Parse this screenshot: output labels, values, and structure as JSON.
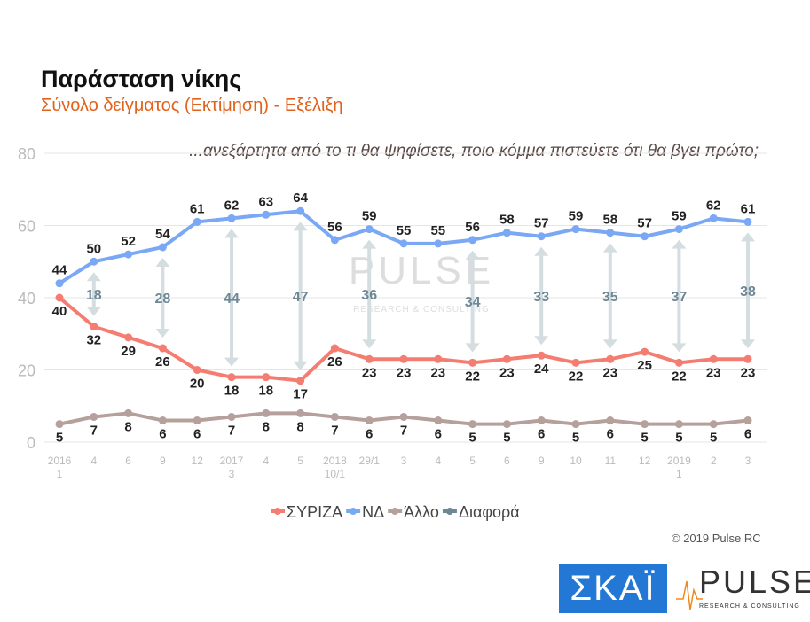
{
  "header": {
    "title": "Παράσταση νίκης",
    "subtitle": "Σύνολο δείγματος   (Εκτίμηση) - Εξέλιξη",
    "question": "...ανεξάρτητα από το τι θα ψηφίσετε, ποιο κόμμα πιστεύετε ότι θα βγει πρώτο;"
  },
  "footer": {
    "copyright": "© 2019 Pulse RC",
    "logo_skai": "ΣΚΑΪ",
    "logo_pulse": "PULSE",
    "logo_pulse_sub": "RESEARCH & CONSULTING"
  },
  "chart_data": {
    "type": "line",
    "ylim": [
      0,
      80
    ],
    "yticks": [
      0,
      20,
      40,
      60,
      80
    ],
    "categories": [
      [
        "2016",
        "1"
      ],
      [
        "4",
        ""
      ],
      [
        "6",
        ""
      ],
      [
        "9",
        ""
      ],
      [
        "12",
        ""
      ],
      [
        "2017",
        "3"
      ],
      [
        "4",
        ""
      ],
      [
        "5",
        ""
      ],
      [
        "2018",
        "10/1"
      ],
      [
        "29/1",
        ""
      ],
      [
        "3",
        ""
      ],
      [
        "4",
        ""
      ],
      [
        "5",
        ""
      ],
      [
        "6",
        ""
      ],
      [
        "9",
        ""
      ],
      [
        "10",
        ""
      ],
      [
        "11",
        ""
      ],
      [
        "12",
        ""
      ],
      [
        "2019",
        "1"
      ],
      [
        "2",
        ""
      ],
      [
        "3",
        ""
      ]
    ],
    "series": [
      {
        "name": "ΣΥΡΙΖΑ",
        "color": "#f47c70",
        "values": [
          40,
          32,
          29,
          26,
          20,
          18,
          18,
          17,
          26,
          23,
          23,
          23,
          22,
          23,
          24,
          22,
          23,
          25,
          22,
          23,
          23
        ]
      },
      {
        "name": "ΝΔ",
        "color": "#7aa8f5",
        "values": [
          44,
          50,
          52,
          54,
          61,
          62,
          63,
          64,
          56,
          59,
          55,
          55,
          56,
          58,
          57,
          59,
          58,
          57,
          59,
          62,
          61
        ]
      },
      {
        "name": "Άλλο",
        "color": "#b5a09c",
        "values": [
          5,
          7,
          8,
          6,
          6,
          7,
          8,
          8,
          7,
          6,
          7,
          6,
          5,
          5,
          6,
          5,
          6,
          5,
          5,
          5,
          6
        ]
      },
      {
        "name": "Διαφορά",
        "color": "#6e8896",
        "values": [
          null,
          18,
          null,
          28,
          null,
          44,
          null,
          47,
          null,
          36,
          null,
          null,
          34,
          null,
          33,
          null,
          35,
          null,
          37,
          null,
          38
        ]
      }
    ],
    "grid": true,
    "legend": "bottom",
    "watermark": "PULSE RESEARCH & CONSULTING"
  }
}
